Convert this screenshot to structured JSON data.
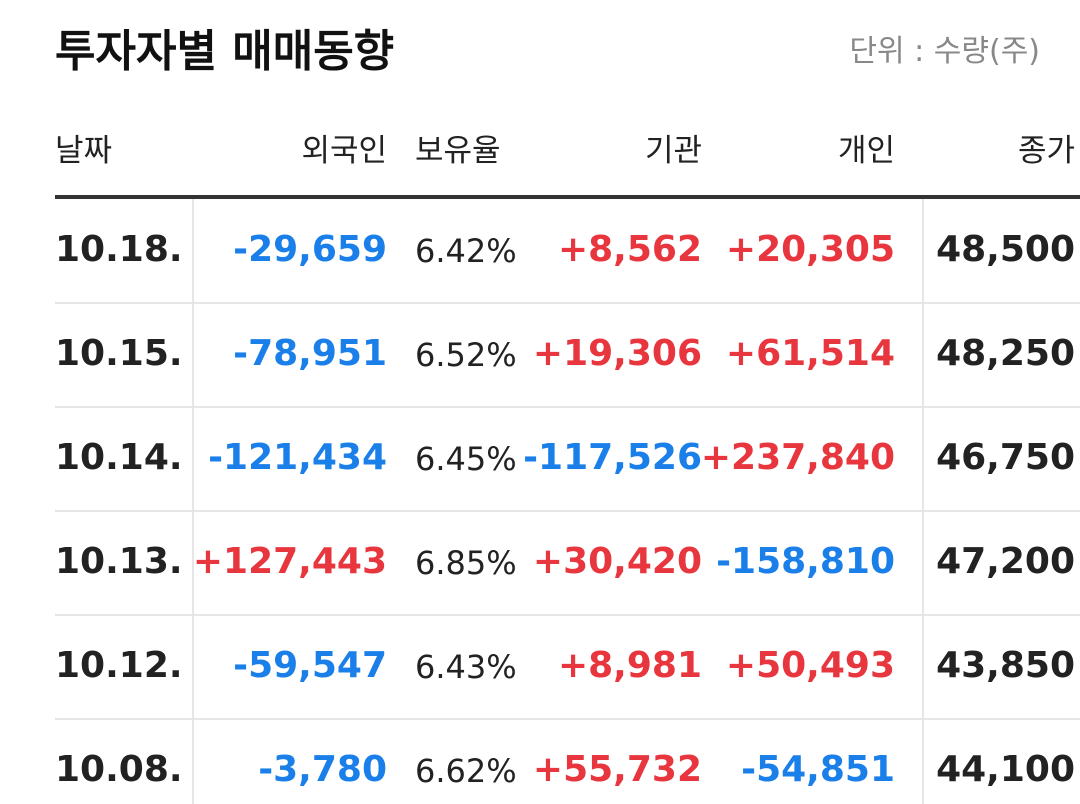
{
  "header": {
    "title": "투자자별 매매동향",
    "unit": "단위 : 수량(주)"
  },
  "table": {
    "columns": [
      "날짜",
      "외국인",
      "보유율",
      "기관",
      "개인",
      "종가"
    ],
    "rows": [
      [
        "10.18.",
        "-29,659",
        "6.42%",
        "+8,562",
        "+20,305",
        "48,500"
      ],
      [
        "10.15.",
        "-78,951",
        "6.52%",
        "+19,306",
        "+61,514",
        "48,250"
      ],
      [
        "10.14.",
        "-121,434",
        "6.45%",
        "-117,526",
        "+237,840",
        "46,750"
      ],
      [
        "10.13.",
        "+127,443",
        "6.85%",
        "+30,420",
        "-158,810",
        "47,200"
      ],
      [
        "10.12.",
        "-59,547",
        "6.43%",
        "+8,981",
        "+50,493",
        "43,850"
      ],
      [
        "10.08.",
        "-3,780",
        "6.62%",
        "+55,732",
        "-54,851",
        "44,100"
      ]
    ]
  }
}
